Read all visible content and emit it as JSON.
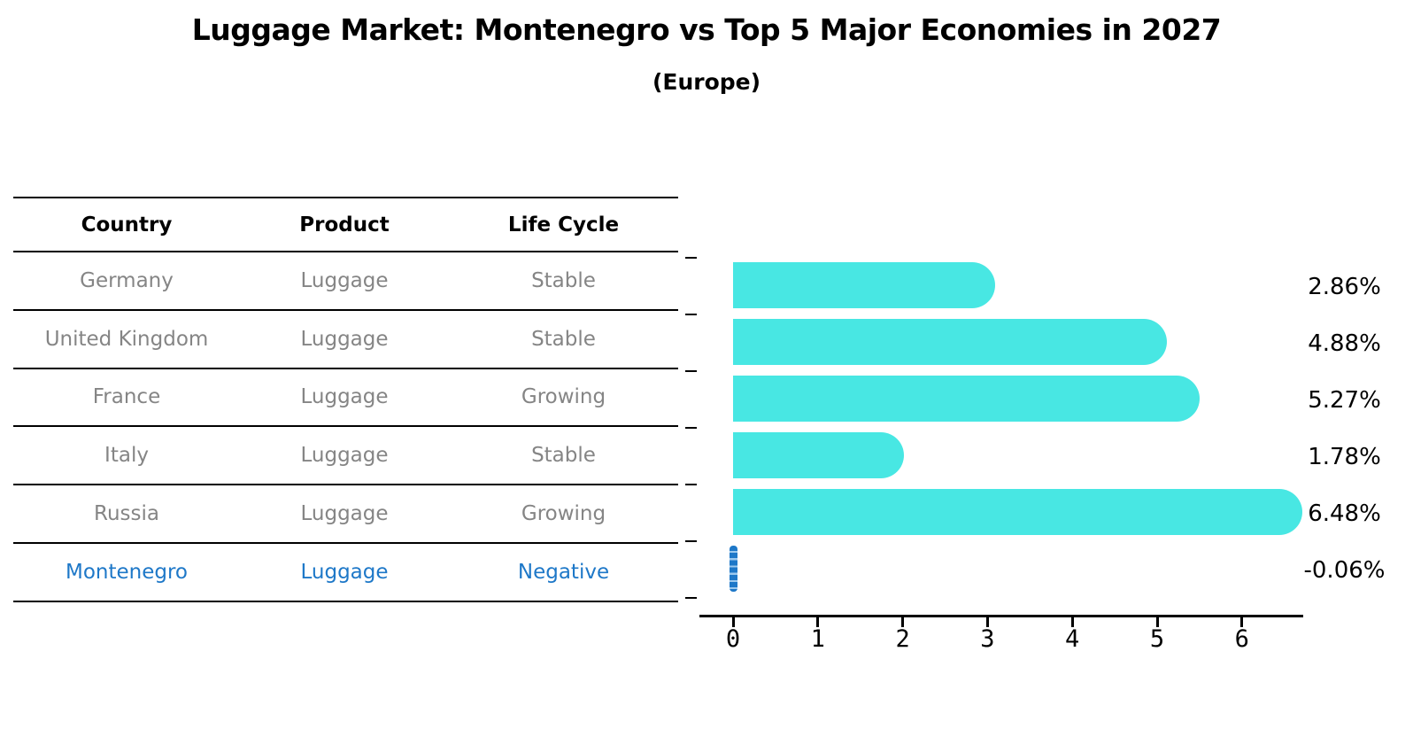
{
  "header": {
    "title": "Luggage Market: Montenegro vs Top 5 Major Economies in 2027",
    "subtitle": "(Europe)"
  },
  "table": {
    "headers": [
      "Country",
      "Product",
      "Life Cycle"
    ],
    "rows": [
      {
        "country": "Germany",
        "product": "Luggage",
        "life_cycle": "Stable",
        "highlight": false
      },
      {
        "country": "United Kingdom",
        "product": "Luggage",
        "life_cycle": "Stable",
        "highlight": false
      },
      {
        "country": "France",
        "product": "Luggage",
        "life_cycle": "Growing",
        "highlight": false
      },
      {
        "country": "Italy",
        "product": "Luggage",
        "life_cycle": "Stable",
        "highlight": false
      },
      {
        "country": "Russia",
        "product": "Luggage",
        "life_cycle": "Growing",
        "highlight": false
      },
      {
        "country": "Montenegro",
        "product": "Luggage",
        "life_cycle": "Negative",
        "highlight": true
      }
    ]
  },
  "chart_data": {
    "type": "bar",
    "orientation": "horizontal",
    "title": "Luggage Market: Montenegro vs Top 5 Major Economies in 2027 (Europe)",
    "categories": [
      "Germany",
      "United Kingdom",
      "France",
      "Italy",
      "Russia",
      "Montenegro"
    ],
    "values": [
      2.86,
      4.88,
      5.27,
      1.78,
      6.48,
      -0.06
    ],
    "value_labels": [
      "2.86%",
      "4.88%",
      "5.27%",
      "1.78%",
      "6.48%",
      "-0.06%"
    ],
    "unit": "percent CAGR",
    "x_ticks": [
      0,
      1,
      2,
      3,
      4,
      5,
      6
    ],
    "xlim": [
      0,
      6.7
    ],
    "grid": false,
    "legend": false,
    "bar_color": "#48E7E3",
    "highlight_color": "#1E78C8",
    "highlight_index": 5,
    "negative_marker_style": "dashed-vertical-line-at-zero"
  }
}
